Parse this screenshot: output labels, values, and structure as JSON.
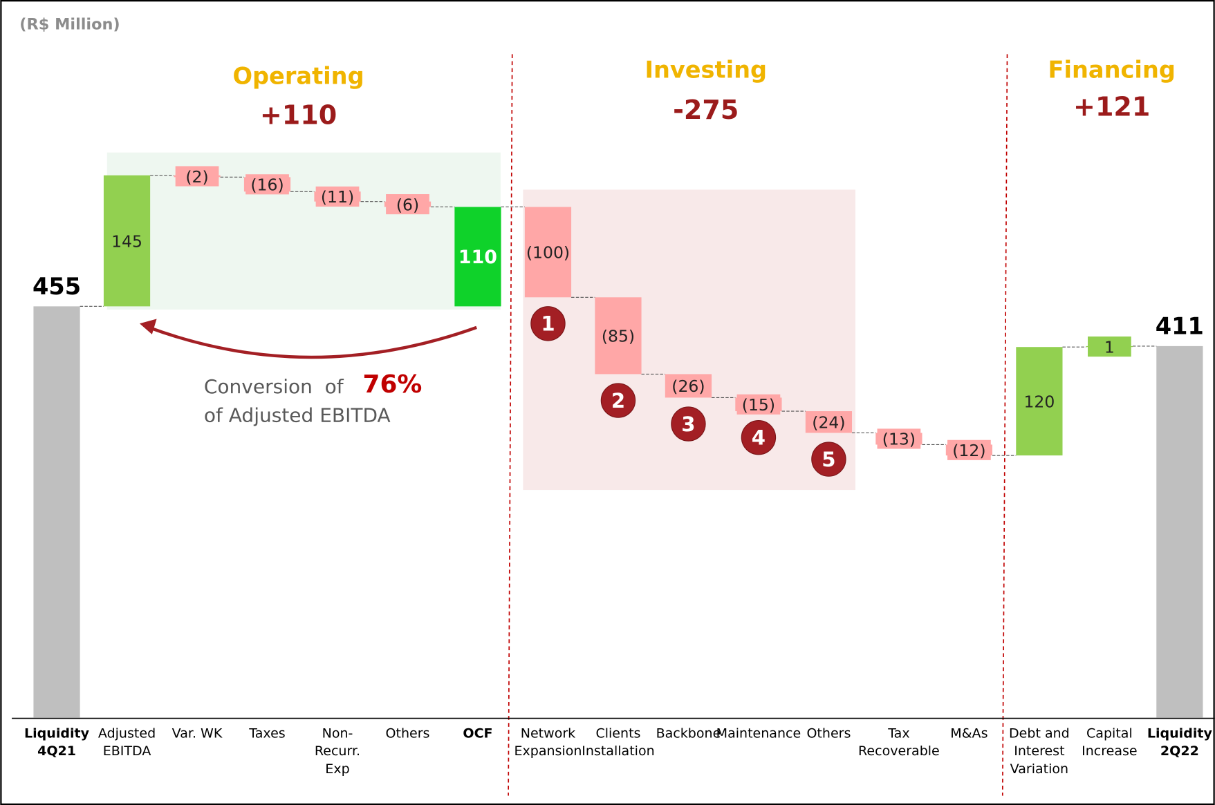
{
  "chart_data": {
    "type": "waterfall",
    "unit_label": "(R$ Million)",
    "categories": [
      [
        "Liquidity",
        "4Q21"
      ],
      [
        "Adjusted",
        "EBITDA"
      ],
      [
        "Var. WK"
      ],
      [
        "Taxes"
      ],
      [
        "Non-",
        "Recurr.",
        "Exp"
      ],
      [
        "Others"
      ],
      [
        "OCF"
      ],
      [
        "Network",
        "Expansion"
      ],
      [
        "Clients",
        "Installation"
      ],
      [
        "Backbone"
      ],
      [
        "Maintenance"
      ],
      [
        "Others"
      ],
      [
        "Tax",
        "Recoverable"
      ],
      [
        "M&As"
      ],
      [
        "Debt and",
        "Interest",
        "Variation"
      ],
      [
        "Capital",
        "Increase"
      ],
      [
        "Liquidity",
        "2Q22"
      ]
    ],
    "measures": [
      "absolute",
      "relative",
      "relative",
      "relative",
      "relative",
      "relative",
      "subtotal",
      "relative",
      "relative",
      "relative",
      "relative",
      "relative",
      "relative",
      "relative",
      "relative",
      "relative",
      "total"
    ],
    "values": [
      455,
      145,
      -2,
      -16,
      -11,
      -6,
      110,
      -100,
      -85,
      -26,
      -15,
      -24,
      -13,
      -12,
      120,
      1,
      411
    ],
    "value_labels": [
      "455",
      "145",
      "(2)",
      "(16)",
      "(11)",
      "(6)",
      "110",
      "(100)",
      "(85)",
      "(26)",
      "(15)",
      "(24)",
      "(13)",
      "(12)",
      "120",
      "1",
      "411"
    ],
    "colors": {
      "absolute": "#bfbfbf",
      "total": "#bfbfbf",
      "increase": "#92d050",
      "decrease": "#ffa7a7",
      "subtotal": "#0fd22a"
    },
    "ylim": [
      0,
      794
    ],
    "sections": [
      {
        "name": "Operating",
        "total": "+110"
      },
      {
        "name": "Investing",
        "total": "-275"
      },
      {
        "name": "Financing",
        "total": "+121"
      }
    ],
    "markers": [
      "1",
      "2",
      "3",
      "4",
      "5"
    ],
    "annotation": {
      "text": "Conversion  of",
      "highlight": "76%",
      "text2": "of Adjusted EBITDA"
    }
  }
}
